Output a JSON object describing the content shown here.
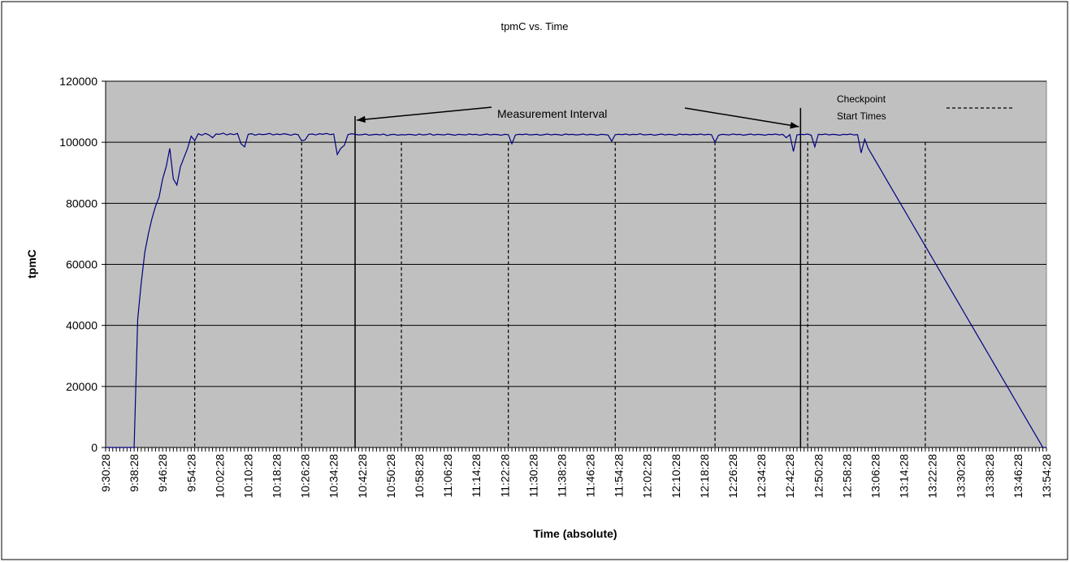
{
  "chart_data": {
    "type": "line",
    "title": "tpmC vs. Time",
    "x_label": "Time (absolute)",
    "y_label": "tpmC",
    "ylim": [
      0,
      120000
    ],
    "yticks": [
      0,
      20000,
      40000,
      60000,
      80000,
      100000,
      120000
    ],
    "grid": true,
    "plot_background": "#c0c0c0",
    "categories": [
      "9:30:28",
      null,
      null,
      null,
      null,
      null,
      null,
      null,
      "9:38:28",
      null,
      null,
      null,
      null,
      null,
      null,
      null,
      "9:46:28",
      null,
      null,
      null,
      null,
      null,
      null,
      null,
      "9:54:28",
      null,
      null,
      null,
      null,
      null,
      null,
      null,
      "10:02:28",
      null,
      null,
      null,
      null,
      null,
      null,
      null,
      "10:10:28",
      null,
      null,
      null,
      null,
      null,
      null,
      null,
      "10:18:28",
      null,
      null,
      null,
      null,
      null,
      null,
      null,
      "10:26:28",
      null,
      null,
      null,
      null,
      null,
      null,
      null,
      "10:34:28",
      null,
      null,
      null,
      null,
      null,
      null,
      null,
      "10:42:28",
      null,
      null,
      null,
      null,
      null,
      null,
      null,
      "10:50:28",
      null,
      null,
      null,
      null,
      null,
      null,
      null,
      "10:58:28",
      null,
      null,
      null,
      null,
      null,
      null,
      null,
      "11:06:28",
      null,
      null,
      null,
      null,
      null,
      null,
      null,
      "11:14:28",
      null,
      null,
      null,
      null,
      null,
      null,
      null,
      "11:22:28",
      null,
      null,
      null,
      null,
      null,
      null,
      null,
      "11:30:28",
      null,
      null,
      null,
      null,
      null,
      null,
      null,
      "11:38:28",
      null,
      null,
      null,
      null,
      null,
      null,
      null,
      "11:46:28",
      null,
      null,
      null,
      null,
      null,
      null,
      null,
      "11:54:28",
      null,
      null,
      null,
      null,
      null,
      null,
      null,
      "12:02:28",
      null,
      null,
      null,
      null,
      null,
      null,
      null,
      "12:10:28",
      null,
      null,
      null,
      null,
      null,
      null,
      null,
      "12:18:28",
      null,
      null,
      null,
      null,
      null,
      null,
      null,
      "12:26:28",
      null,
      null,
      null,
      null,
      null,
      null,
      null,
      "12:34:28",
      null,
      null,
      null,
      null,
      null,
      null,
      null,
      "12:42:28",
      null,
      null,
      null,
      null,
      null,
      null,
      null,
      "12:50:28",
      null,
      null,
      null,
      null,
      null,
      null,
      null,
      "12:58:28",
      null,
      null,
      null,
      null,
      null,
      null,
      null,
      "13:06:28",
      null,
      null,
      null,
      null,
      null,
      null,
      null,
      "13:14:28",
      null,
      null,
      null,
      null,
      null,
      null,
      null,
      "13:22:28",
      null,
      null,
      null,
      null,
      null,
      null,
      null,
      "13:30:28",
      null,
      null,
      null,
      null,
      null,
      null,
      null,
      "13:38:28",
      null,
      null,
      null,
      null,
      null,
      null,
      null,
      "13:46:28",
      null,
      null,
      null,
      null,
      null,
      null,
      null,
      "13:54:28"
    ],
    "series": [
      {
        "name": "tpmC",
        "color": "#000080",
        "values": [
          0,
          0,
          0,
          0,
          0,
          0,
          0,
          0,
          0,
          42000,
          54000,
          64000,
          70000,
          75000,
          79000,
          82000,
          88000,
          92000,
          98000,
          88000,
          86000,
          92000,
          95000,
          98000,
          102000,
          100500,
          102800,
          102300,
          102900,
          102400,
          101500,
          102700,
          102600,
          103000,
          102400,
          102800,
          102500,
          102900,
          99500,
          98500,
          102600,
          102800,
          102300,
          102700,
          102500,
          102600,
          102900,
          102400,
          102700,
          102500,
          102800,
          102600,
          102300,
          102700,
          102500,
          100500,
          100800,
          102600,
          102700,
          102400,
          102800,
          102600,
          102900,
          102500,
          102700,
          96000,
          98000,
          99000,
          102500,
          102800,
          102600,
          102400,
          102500,
          102700,
          102300,
          102500,
          102600,
          102400,
          102700,
          102200,
          102500,
          102600,
          102300,
          102500,
          102400,
          102600,
          102500,
          102300,
          102700,
          102400,
          102500,
          102800,
          102300,
          102600,
          102500,
          102400,
          102700,
          102500,
          102300,
          102600,
          102500,
          102400,
          102700,
          102500,
          102600,
          102300,
          102500,
          102700,
          102400,
          102600,
          102500,
          102300,
          102600,
          102500,
          99500,
          102400,
          102600,
          102500,
          102700,
          102400,
          102500,
          102600,
          102300,
          102500,
          102700,
          102400,
          102600,
          102500,
          102300,
          102700,
          102500,
          102600,
          102400,
          102500,
          102700,
          102400,
          102600,
          102500,
          102300,
          102600,
          102500,
          102400,
          100300,
          102500,
          102600,
          102500,
          102700,
          102400,
          102600,
          102500,
          102800,
          102400,
          102500,
          102600,
          102300,
          102500,
          102700,
          102400,
          102600,
          102500,
          102300,
          102700,
          102500,
          102600,
          102400,
          102600,
          102500,
          102700,
          102400,
          102600,
          102500,
          100000,
          102300,
          102600,
          102500,
          102400,
          102700,
          102500,
          102600,
          102300,
          102500,
          102700,
          102400,
          102600,
          102500,
          102300,
          102600,
          102500,
          102700,
          102400,
          102600,
          101500,
          102500,
          97000,
          102400,
          102600,
          102500,
          102700,
          102300,
          98500,
          102600,
          102500,
          102700,
          102400,
          102600,
          102500,
          102300,
          102600,
          102500,
          102700,
          102400,
          102500,
          96500,
          101000,
          98000,
          96000,
          94000,
          92000,
          90000,
          88000,
          86000,
          84000,
          82000,
          80000,
          78000,
          76000,
          74000,
          72000,
          70000,
          68000,
          66000,
          64000,
          62000,
          60000,
          58000,
          56000,
          54000,
          52000,
          50000,
          48000,
          46000,
          44000,
          42000,
          40000,
          38000,
          36000,
          34000,
          32000,
          30000,
          28000,
          26000,
          24000,
          22000,
          20000,
          18000,
          16000,
          14000,
          12000,
          10000,
          8000,
          6000,
          4000,
          2000,
          0,
          0
        ]
      }
    ],
    "measurement_interval": {
      "label": "Measurement Interval",
      "times": [
        "10:40:28",
        "12:45:28"
      ]
    },
    "checkpoints": {
      "label": [
        "Checkpoint",
        "Start Times"
      ],
      "times": [
        "9:55:28",
        "10:25:28",
        "10:53:28",
        "11:23:28",
        "11:53:28",
        "12:21:28",
        "12:47:28",
        "13:20:28"
      ]
    }
  }
}
